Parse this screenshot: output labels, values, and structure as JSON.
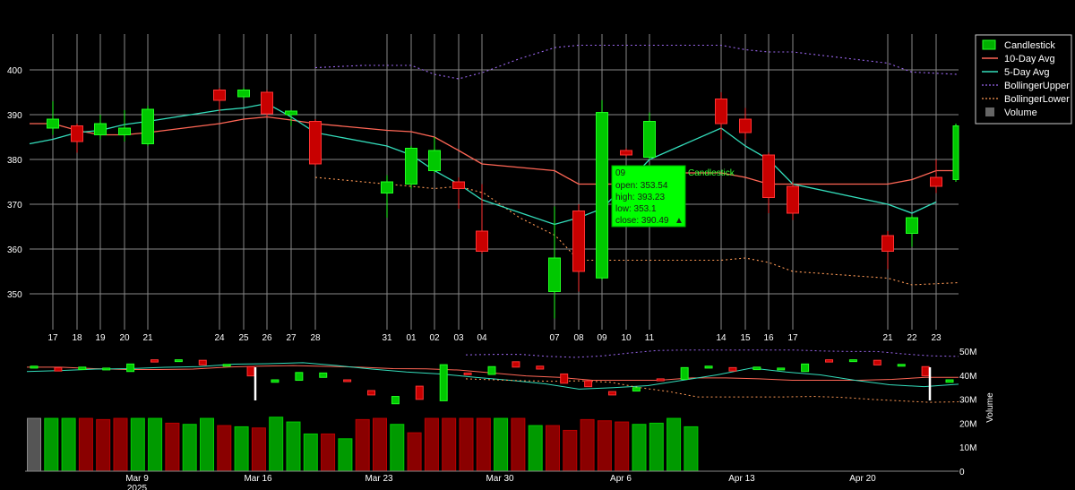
{
  "chart_data": {
    "type": "candlestick",
    "main": {
      "ylim": [
        342,
        408
      ],
      "yticks": [
        350,
        360,
        370,
        380,
        390,
        400
      ],
      "xlabels": [
        "17",
        "18",
        "19",
        "20",
        "21",
        "24",
        "25",
        "26",
        "27",
        "28",
        "31",
        "01",
        "02",
        "03",
        "04",
        "07",
        "08",
        "09",
        "10",
        "11",
        "14",
        "15",
        "16",
        "17",
        "21",
        "22",
        "23"
      ],
      "candles": [
        {
          "label": "17",
          "open": 387.0,
          "close": 389.0,
          "high": 393.0,
          "low": 385.5
        },
        {
          "label": "18",
          "open": 387.5,
          "close": 384.0,
          "high": 388.0,
          "low": 381.5
        },
        {
          "label": "19",
          "open": 385.5,
          "close": 388.0,
          "high": 390.0,
          "low": 384.5
        },
        {
          "label": "20",
          "open": 385.5,
          "close": 387.0,
          "high": 391.0,
          "low": 384.0
        },
        {
          "label": "21",
          "open": 383.5,
          "close": 391.2,
          "high": 392.0,
          "low": 383.0
        },
        {
          "label": "24",
          "open": 395.5,
          "close": 393.2,
          "high": 396.0,
          "low": 390.5
        },
        {
          "label": "25",
          "open": 394.0,
          "close": 395.5,
          "high": 396.0,
          "low": 393.5
        },
        {
          "label": "26",
          "open": 395.0,
          "close": 390.2,
          "high": 395.5,
          "low": 389.5
        },
        {
          "label": "27",
          "open": 390.0,
          "close": 390.8,
          "high": 391.0,
          "low": 387.5
        },
        {
          "label": "28",
          "open": 388.5,
          "close": 379.0,
          "high": 389.0,
          "low": 378.5
        },
        {
          "label": "31",
          "open": 372.5,
          "close": 375.0,
          "high": 376.5,
          "low": 367.0
        },
        {
          "label": "01",
          "open": 374.5,
          "close": 382.5,
          "high": 383.0,
          "low": 373.5
        },
        {
          "label": "02",
          "open": 377.5,
          "close": 382.0,
          "high": 385.0,
          "low": 377.0
        },
        {
          "label": "03",
          "open": 375.0,
          "close": 373.5,
          "high": 376.0,
          "low": 369.0
        },
        {
          "label": "04",
          "open": 364.0,
          "close": 359.5,
          "high": 374.5,
          "low": 359.0
        },
        {
          "label": "07",
          "open": 350.5,
          "close": 358.0,
          "high": 369.5,
          "low": 344.5
        },
        {
          "label": "08",
          "open": 368.5,
          "close": 355.0,
          "high": 370.0,
          "low": 350.5
        },
        {
          "label": "09",
          "open": 353.54,
          "close": 390.49,
          "high": 393.23,
          "low": 353.1
        },
        {
          "label": "10",
          "open": 382.0,
          "close": 381.0,
          "high": 382.5,
          "low": 380.5
        },
        {
          "label": "11",
          "open": 380.5,
          "close": 388.5,
          "high": 390.5,
          "low": 380.0
        },
        {
          "label": "14",
          "open": 393.5,
          "close": 388.0,
          "high": 395.0,
          "low": 384.5
        },
        {
          "label": "15",
          "open": 389.0,
          "close": 386.0,
          "high": 391.5,
          "low": 384.5
        },
        {
          "label": "16",
          "open": 381.0,
          "close": 371.5,
          "high": 381.5,
          "low": 368.0
        },
        {
          "label": "17",
          "open": 374.0,
          "close": 368.0,
          "high": 375.0,
          "low": 366.5
        },
        {
          "label": "21",
          "open": 363.0,
          "close": 359.5,
          "high": 364.0,
          "low": 355.5
        },
        {
          "label": "22",
          "open": 363.5,
          "close": 367.0,
          "high": 367.5,
          "low": 360.5
        },
        {
          "label": "23",
          "open": 376.0,
          "close": 374.0,
          "high": 380.0,
          "low": 372.5
        },
        {
          "label": "",
          "open": 375.5,
          "close": 387.5,
          "high": 388.0,
          "low": 375.0
        }
      ],
      "ma10": [
        388,
        388,
        386.5,
        385.5,
        385.5,
        386,
        388,
        389,
        389.5,
        388.8,
        388,
        386.5,
        386.2,
        385,
        382,
        379,
        377.5,
        374.5,
        374.5,
        374.5,
        377,
        377,
        376,
        374.5,
        374.5,
        374.5,
        375.5,
        377.5,
        377.5
      ],
      "ma5": [
        383.5,
        384.5,
        386,
        386.5,
        387.8,
        388.5,
        391,
        391.5,
        392.5,
        389.5,
        386,
        383,
        381,
        377.5,
        374.5,
        371,
        365.5,
        367,
        369,
        374.5,
        380,
        387,
        383,
        380,
        374.5,
        370,
        368,
        370.5
      ],
      "boll_upper": [
        400.5,
        401,
        401,
        399,
        398,
        399.5,
        402.5,
        405,
        405.5,
        405.5,
        405.5,
        405.5,
        405.5,
        404.5,
        404,
        404,
        401.5,
        399.5,
        399
      ],
      "boll_lower": [
        376,
        375,
        374,
        373.5,
        374,
        372.5,
        367,
        363,
        357.5,
        357.5,
        357.5,
        357.5,
        358,
        357,
        355,
        353.5,
        352,
        352.5
      ]
    },
    "volume": {
      "ylim": [
        0,
        50
      ],
      "yticks": [
        "0",
        "10M",
        "20M",
        "30M",
        "40M",
        "50M"
      ],
      "ylabel": "Volume",
      "xlabels": [
        "Mar 9",
        "Mar 16",
        "Mar 23",
        "Mar 30",
        "Apr 6",
        "Apr 13",
        "Apr 20"
      ],
      "xlabel_sub": "2025",
      "bars": [
        {
          "v": 22,
          "c": "gray"
        },
        {
          "v": 22,
          "c": "green"
        },
        {
          "v": 22,
          "c": "green"
        },
        {
          "v": 22,
          "c": "red"
        },
        {
          "v": 21.5,
          "c": "red"
        },
        {
          "v": 22,
          "c": "red"
        },
        {
          "v": 22,
          "c": "green"
        },
        {
          "v": 22,
          "c": "green"
        },
        {
          "v": 20,
          "c": "red"
        },
        {
          "v": 19.5,
          "c": "green"
        },
        {
          "v": 22,
          "c": "green"
        },
        {
          "v": 19,
          "c": "red"
        },
        {
          "v": 18.5,
          "c": "green"
        },
        {
          "v": 18,
          "c": "red"
        },
        {
          "v": 22.5,
          "c": "green"
        },
        {
          "v": 20.5,
          "c": "green"
        },
        {
          "v": 15.5,
          "c": "green"
        },
        {
          "v": 15.5,
          "c": "red"
        },
        {
          "v": 13.5,
          "c": "green"
        },
        {
          "v": 21.5,
          "c": "red"
        },
        {
          "v": 22,
          "c": "red"
        },
        {
          "v": 19.5,
          "c": "green"
        },
        {
          "v": 16,
          "c": "red"
        },
        {
          "v": 22,
          "c": "red"
        },
        {
          "v": 22,
          "c": "red"
        },
        {
          "v": 22,
          "c": "red"
        },
        {
          "v": 22,
          "c": "red"
        },
        {
          "v": 22,
          "c": "green"
        },
        {
          "v": 22,
          "c": "red"
        },
        {
          "v": 19,
          "c": "green"
        },
        {
          "v": 19,
          "c": "red"
        },
        {
          "v": 17,
          "c": "red"
        },
        {
          "v": 21.5,
          "c": "red"
        },
        {
          "v": 21,
          "c": "red"
        },
        {
          "v": 20.5,
          "c": "red"
        },
        {
          "v": 19.5,
          "c": "green"
        },
        {
          "v": 20,
          "c": "green"
        },
        {
          "v": 22,
          "c": "green"
        },
        {
          "v": 18.5,
          "c": "green"
        }
      ]
    },
    "legend": [
      {
        "name": "Candlestick",
        "style": "candle",
        "color": "#22ee22"
      },
      {
        "name": "10-Day Avg",
        "style": "line",
        "color": "#ff6655"
      },
      {
        "name": "5-Day Avg",
        "style": "line",
        "color": "#33ddbb"
      },
      {
        "name": "BollingerUpper",
        "style": "dot",
        "color": "#9a66ee"
      },
      {
        "name": "BollingerLower",
        "style": "dot",
        "color": "#ff9955"
      },
      {
        "name": "Volume",
        "style": "box",
        "color": "#666666"
      }
    ],
    "tooltip": {
      "date": "09",
      "open": "open: 353.54",
      "high": "high: 393.23",
      "low": "low: 353.1",
      "close": "close: 390.49",
      "arrow": "▲",
      "series": "Candlestick"
    },
    "colors": {
      "up": "#00c800",
      "down": "#c80000",
      "grid": "#666666",
      "bg": "#000000"
    }
  }
}
